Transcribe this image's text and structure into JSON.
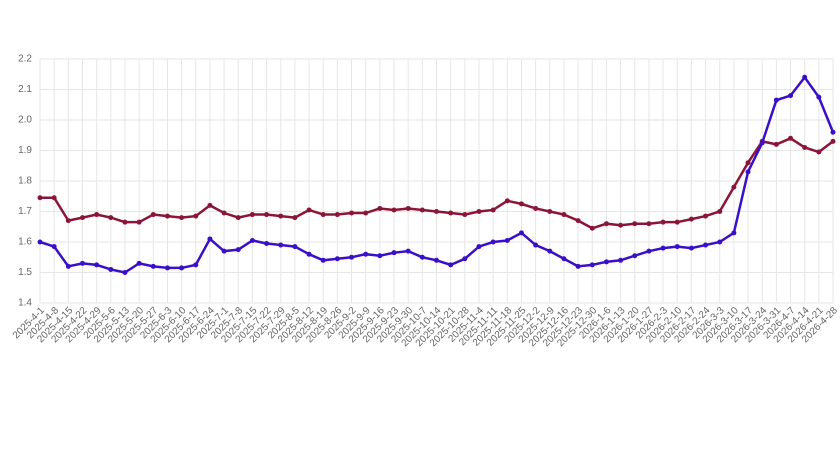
{
  "chart_data": {
    "type": "line",
    "categories": [
      "2025-4-1",
      "2025-4-8",
      "2025-4-15",
      "2025-4-22",
      "2025-4-29",
      "2025-5-6",
      "2025-5-13",
      "2025-5-20",
      "2025-5-27",
      "2025-6-3",
      "2025-6-10",
      "2025-6-17",
      "2025-6-24",
      "2025-7-1",
      "2025-7-8",
      "2025-7-15",
      "2025-7-22",
      "2025-7-29",
      "2025-8-5",
      "2025-8-12",
      "2025-8-19",
      "2025-8-26",
      "2025-9-2",
      "2025-9-9",
      "2025-9-16",
      "2025-9-23",
      "2025-9-30",
      "2025-10-7",
      "2025-10-14",
      "2025-10-21",
      "2025-10-28",
      "2025-11-4",
      "2025-11-11",
      "2025-11-18",
      "2025-11-25",
      "2025-12-2",
      "2025-12-9",
      "2025-12-16",
      "2025-12-23",
      "2025-12-30",
      "2026-1-6",
      "2026-1-13",
      "2026-1-20",
      "2026-1-27",
      "2026-2-3",
      "2026-2-10",
      "2026-2-17",
      "2026-2-24",
      "2026-3-3",
      "2026-3-10",
      "2026-3-17",
      "2026-3-24",
      "2026-3-31",
      "2026-4-7",
      "2026-4-14",
      "2026-4-21",
      "2026-4-28"
    ],
    "series": [
      {
        "color": "#8b1538",
        "values": [
          1.745,
          1.745,
          1.67,
          1.68,
          1.69,
          1.68,
          1.665,
          1.665,
          1.69,
          1.685,
          1.68,
          1.685,
          1.72,
          1.695,
          1.68,
          1.69,
          1.69,
          1.685,
          1.68,
          1.705,
          1.69,
          1.69,
          1.695,
          1.695,
          1.71,
          1.705,
          1.71,
          1.705,
          1.7,
          1.695,
          1.69,
          1.7,
          1.705,
          1.735,
          1.725,
          1.71,
          1.7,
          1.69,
          1.67,
          1.645,
          1.66,
          1.655,
          1.66,
          1.66,
          1.665,
          1.665,
          1.675,
          1.685,
          1.7,
          1.78,
          1.86,
          1.93,
          1.92,
          1.94,
          1.91,
          1.895,
          1.93
        ]
      },
      {
        "color": "#3a0fc8",
        "values": [
          1.6,
          1.585,
          1.52,
          1.53,
          1.525,
          1.51,
          1.5,
          1.53,
          1.52,
          1.515,
          1.515,
          1.525,
          1.61,
          1.57,
          1.575,
          1.605,
          1.595,
          1.59,
          1.585,
          1.56,
          1.54,
          1.545,
          1.55,
          1.56,
          1.555,
          1.565,
          1.57,
          1.55,
          1.54,
          1.525,
          1.545,
          1.585,
          1.6,
          1.605,
          1.63,
          1.59,
          1.57,
          1.545,
          1.52,
          1.525,
          1.535,
          1.54,
          1.555,
          1.57,
          1.58,
          1.585,
          1.58,
          1.59,
          1.6,
          1.63,
          1.83,
          1.925,
          2.065,
          2.08,
          2.14,
          2.075,
          1.96
        ]
      }
    ],
    "ylim": [
      1.4,
      2.2
    ],
    "yticks": [
      1.4,
      1.5,
      1.6,
      1.7,
      1.8,
      1.9,
      {
        "value": 2,
        "label": "2.0"
      },
      2.1,
      2.2
    ],
    "grid": true
  }
}
